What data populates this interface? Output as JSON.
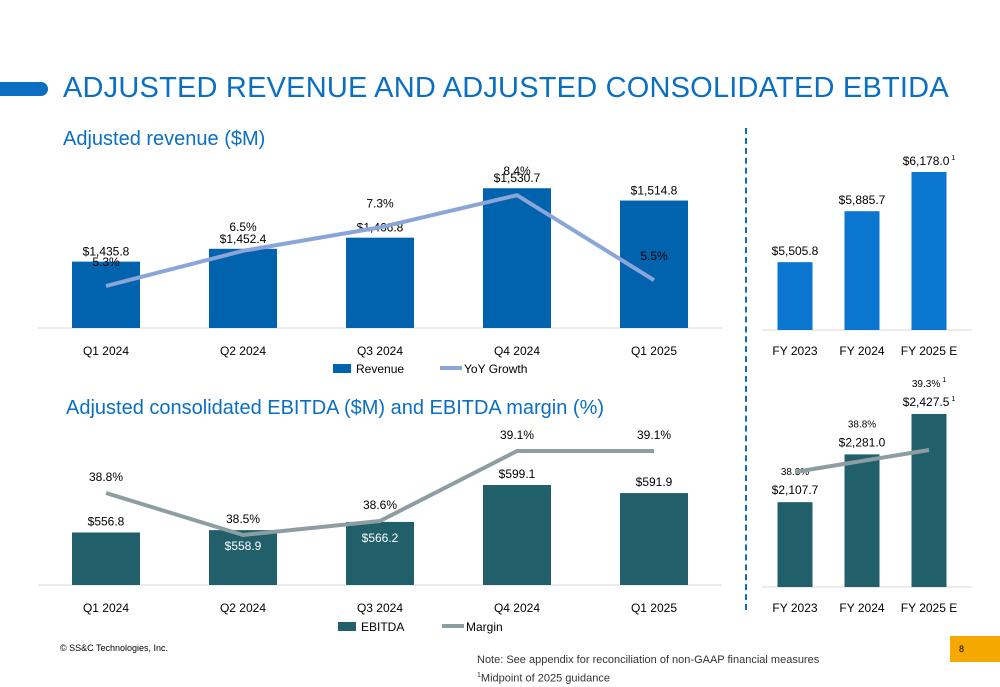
{
  "title": "ADJUSTED REVENUE AND ADJUSTED CONSOLIDATED EBTIDA",
  "footer": {
    "copyright": "© SS&C Technologies, Inc.",
    "note_line1": "Note: See appendix for reconciliation of non-GAAP financial measures",
    "note_line2_sup": "1",
    "note_line2": "Midpoint of 2025 guidance",
    "page_number": "8"
  },
  "colors": {
    "revenue": "#0163ad",
    "revenue_line": "#8aa5d8",
    "annual_revenue": "#0a76d0",
    "ebitda": "#215f6a",
    "margin_line": "#8d9ea2",
    "accent": "#0a6fc2",
    "page_tab": "#f5a800"
  },
  "chart_data": [
    {
      "type": "bar",
      "title": "Adjusted revenue ($M)",
      "categories": [
        "Q1 2024",
        "Q2 2024",
        "Q3 2024",
        "Q4 2024",
        "Q1 2025"
      ],
      "series": [
        {
          "name": "Revenue",
          "type": "bar",
          "values": [
            1435.8,
            1452.4,
            1466.8,
            1530.7,
            1514.8
          ],
          "labels": [
            "$1,435.8",
            "$1,452.4",
            "$1,466.8",
            "$1,530.7",
            "$1,514.8"
          ]
        },
        {
          "name": "YoY Growth",
          "type": "line",
          "values": [
            5.3,
            6.5,
            7.3,
            8.4,
            5.5
          ],
          "labels": [
            "5.3%",
            "6.5%",
            "7.3%",
            "8.4%",
            "5.5%"
          ]
        }
      ],
      "legend": "bottom"
    },
    {
      "type": "bar",
      "title": "Adjusted consolidated EBITDA ($M) and EBITDA margin (%)",
      "categories": [
        "Q1 2024",
        "Q2 2024",
        "Q3 2024",
        "Q4 2024",
        "Q1 2025"
      ],
      "series": [
        {
          "name": "EBITDA",
          "type": "bar",
          "values": [
            556.8,
            558.9,
            566.2,
            599.1,
            591.9
          ],
          "labels": [
            "$556.8",
            "$558.9",
            "$566.2",
            "$599.1",
            "$591.9"
          ]
        },
        {
          "name": "Margin",
          "type": "line",
          "values": [
            38.8,
            38.5,
            38.6,
            39.1,
            39.1
          ],
          "labels": [
            "38.8%",
            "38.5%",
            "38.6%",
            "39.1%",
            "39.1%"
          ]
        }
      ],
      "legend": "bottom"
    },
    {
      "type": "bar",
      "categories": [
        "FY 2023",
        "FY 2024",
        "FY 2025 E"
      ],
      "series": [
        {
          "type": "bar",
          "values": [
            5505.8,
            5885.7,
            6178.0
          ],
          "labels": [
            "$5,505.8",
            "$5,885.7",
            "$6,178.0"
          ],
          "footnotes": [
            "",
            "",
            "1"
          ]
        }
      ]
    },
    {
      "type": "bar",
      "categories": [
        "FY 2023",
        "FY 2024",
        "FY 2025 E"
      ],
      "series": [
        {
          "type": "bar",
          "values": [
            2107.7,
            2281.0,
            2427.5
          ],
          "labels": [
            "$2,107.7",
            "$2,281.0",
            "$2,427.5"
          ],
          "footnotes": [
            "",
            "",
            "1"
          ]
        },
        {
          "type": "line",
          "values": [
            38.3,
            38.8,
            39.3
          ],
          "labels": [
            "38.3%",
            "38.8%",
            "39.3%"
          ],
          "footnotes": [
            "",
            "",
            "1"
          ]
        }
      ]
    }
  ]
}
